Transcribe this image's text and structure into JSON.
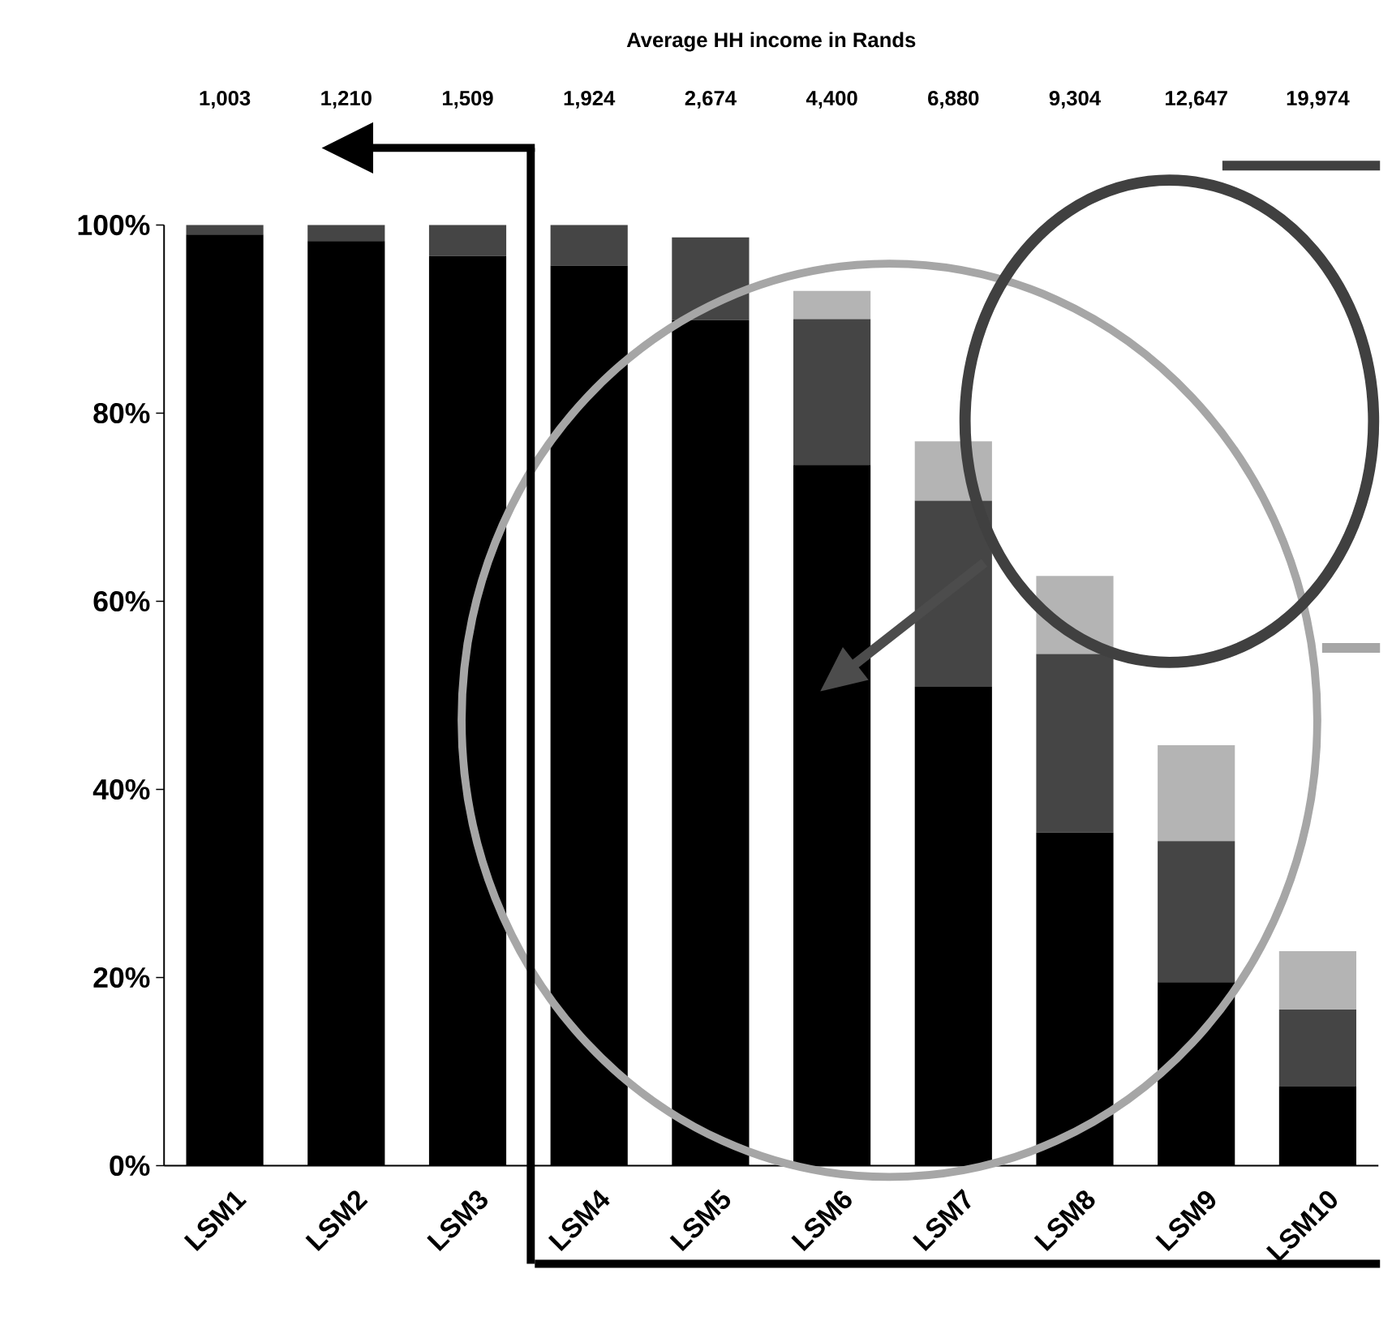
{
  "chart_data": {
    "type": "bar",
    "stacked": true,
    "title": "Average HH income in Rands",
    "annotations": [
      "1,003",
      "1,210",
      "1,509",
      "1,924",
      "2,674",
      "4,400",
      "6,880",
      "9,304",
      "12,647",
      "19,974"
    ],
    "categories": [
      "LSM1",
      "LSM2",
      "LSM3",
      "LSM4",
      "LSM5",
      "LSM6",
      "LSM7",
      "LSM8",
      "LSM9",
      "LSM10"
    ],
    "series": [
      {
        "color": "#000000",
        "values": [
          99,
          98.3,
          96.7,
          95.7,
          89.9,
          74.5,
          50.9,
          35.4,
          19.5,
          8.4
        ]
      },
      {
        "color": "#454545",
        "values": [
          1,
          1.7,
          3.3,
          4.3,
          8.8,
          15.5,
          19.8,
          19,
          15,
          8.2
        ]
      },
      {
        "color": "#b4b4b4",
        "values": [
          null,
          null,
          null,
          null,
          null,
          3,
          6.3,
          8.3,
          10.2,
          6.2
        ]
      }
    ],
    "ylim": [
      0,
      100
    ],
    "yticks": [
      {
        "value": 0,
        "label": "0%"
      },
      {
        "value": 20,
        "label": "20%"
      },
      {
        "value": 40,
        "label": "40%"
      },
      {
        "value": 60,
        "label": "60%"
      },
      {
        "value": 80,
        "label": "80%"
      },
      {
        "value": 100,
        "label": "100%"
      }
    ]
  }
}
